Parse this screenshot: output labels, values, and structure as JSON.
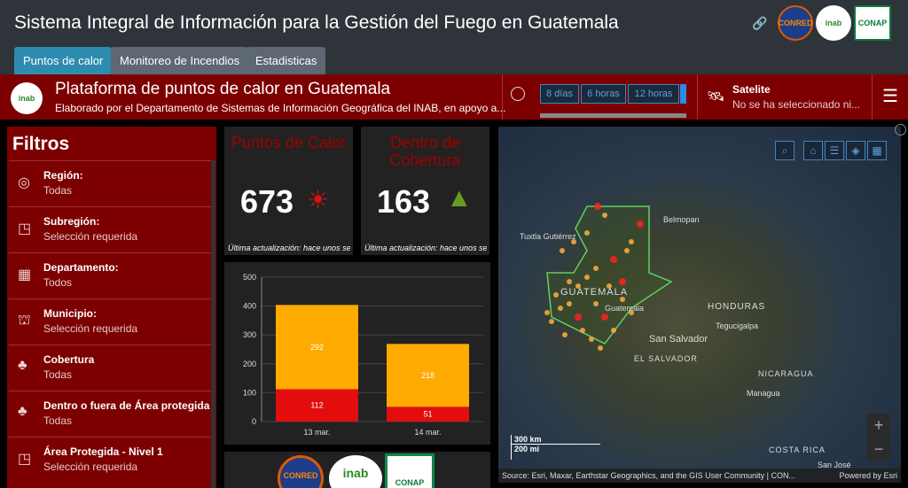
{
  "header": {
    "title": "Sistema Integral de Información para la Gestión del Fuego en Guatemala",
    "logos": [
      "CONRED",
      "inab",
      "CONAP"
    ]
  },
  "tabs": [
    {
      "label": "Puntos de calor",
      "active": true
    },
    {
      "label": "Monitoreo de Incendios"
    },
    {
      "label": "Estadisticas"
    }
  ],
  "banner": {
    "title": "Plataforma de puntos de calor en Guatemala",
    "subtitle": "Elaborado por el Departamento de Sistemas de Información Geográfica del INAB, en apoyo a...",
    "logo": "inab",
    "time_options": [
      "8 días",
      "6 horas",
      "12 horas"
    ],
    "basemap_label": "Satelite",
    "basemap_value": "No se ha seleccionado ni..."
  },
  "filters": {
    "title": "Filtros",
    "items": [
      {
        "label": "Región:",
        "value": "Todas",
        "icon": "globe-icon"
      },
      {
        "label": "Subregión:",
        "value": "Selección requerida",
        "icon": "map-area-icon"
      },
      {
        "label": "Departamento:",
        "value": "Todos",
        "icon": "building-icon"
      },
      {
        "label": "Municipio:",
        "value": "Selección requerida",
        "icon": "town-hall-icon"
      },
      {
        "label": "Cobertura",
        "value": "Todas",
        "icon": "tree-icon"
      },
      {
        "label": "Dentro o fuera de Área protegida",
        "value": "Todas",
        "icon": "tree-icon"
      },
      {
        "label": "Área Protegida - Nivel 1",
        "value": "Selección requerida",
        "icon": "map-area-icon"
      }
    ]
  },
  "cards": [
    {
      "title": "Puntos de Calor",
      "value": "673",
      "updated": "Última actualización: hace unos segu",
      "icon": "sun-thermometer-icon"
    },
    {
      "title": "Dentro de Cobertura",
      "value": "163",
      "updated": "Última actualización: hace unos segu",
      "icon": "tree-fire-icon"
    }
  ],
  "chart_data": {
    "type": "bar",
    "stacked": true,
    "categories": [
      "13 mar.",
      "14 mar."
    ],
    "ylim": [
      0,
      500
    ],
    "yticks": [
      "0",
      "100",
      "200",
      "300",
      "400",
      "500"
    ],
    "series": [
      {
        "values": [
          112,
          51
        ],
        "color": "#e30d0d"
      },
      {
        "values": [
          292,
          218
        ],
        "color": "#ffaa00"
      }
    ]
  },
  "map": {
    "labels": [
      "Belmopan",
      "Tuxtla Gutiérrez",
      "GUATEMALA",
      "Guatemala",
      "HONDURAS",
      "Tegucigalpa",
      "San Salvador",
      "EL SALVADOR",
      "NICARAGUA",
      "Managua",
      "COSTA RICA",
      "San José"
    ],
    "scale": [
      "300 km",
      "200 mi"
    ],
    "attribution": "Source: Esri, Maxar, Earthstar Geographics, and the GIS User Community | CON...",
    "powered": "Powered by Esri"
  },
  "footer_logos": [
    "CONRED",
    "inab",
    "CONAP"
  ]
}
